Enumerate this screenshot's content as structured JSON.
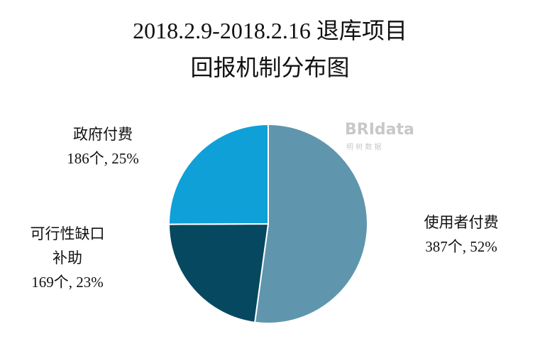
{
  "chart_data": {
    "type": "pie",
    "title": [
      "2018.2.9-2018.2.16 退库项目",
      "回报机制分布图"
    ],
    "categories": [
      "使用者付费",
      "可行性缺口补助",
      "政府付费"
    ],
    "values": [
      387,
      169,
      186
    ],
    "value_labels": [
      "387个, 52%",
      "169个, 23%",
      "186个, 25%"
    ],
    "colors": [
      "#5f96ae",
      "#06485f",
      "#0fa0d8"
    ],
    "watermark": {
      "logo": "BRIdata",
      "text": "明 树 数 据"
    }
  }
}
